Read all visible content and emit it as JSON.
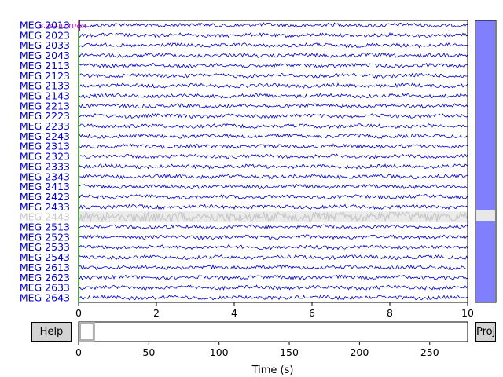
{
  "channels": [
    {
      "name": "MEG 2013",
      "bad": false
    },
    {
      "name": "MEG 2023",
      "bad": false
    },
    {
      "name": "MEG 2033",
      "bad": false
    },
    {
      "name": "MEG 2043",
      "bad": false
    },
    {
      "name": "MEG 2113",
      "bad": false
    },
    {
      "name": "MEG 2123",
      "bad": false
    },
    {
      "name": "MEG 2133",
      "bad": false
    },
    {
      "name": "MEG 2143",
      "bad": false
    },
    {
      "name": "MEG 2213",
      "bad": false
    },
    {
      "name": "MEG 2223",
      "bad": false
    },
    {
      "name": "MEG 2233",
      "bad": false
    },
    {
      "name": "MEG 2243",
      "bad": false
    },
    {
      "name": "MEG 2313",
      "bad": false
    },
    {
      "name": "MEG 2323",
      "bad": false
    },
    {
      "name": "MEG 2333",
      "bad": false
    },
    {
      "name": "MEG 2343",
      "bad": false
    },
    {
      "name": "MEG 2413",
      "bad": false
    },
    {
      "name": "MEG 2423",
      "bad": false
    },
    {
      "name": "MEG 2433",
      "bad": false
    },
    {
      "name": "MEG 2443",
      "bad": true
    },
    {
      "name": "MEG 2513",
      "bad": false
    },
    {
      "name": "MEG 2523",
      "bad": false
    },
    {
      "name": "MEG 2533",
      "bad": false
    },
    {
      "name": "MEG 2543",
      "bad": false
    },
    {
      "name": "MEG 2613",
      "bad": false
    },
    {
      "name": "MEG 2623",
      "bad": false
    },
    {
      "name": "MEG 2633",
      "bad": false
    },
    {
      "name": "MEG 2643",
      "bad": false
    }
  ],
  "main_axis": {
    "x_range": [
      0,
      10
    ],
    "x_ticks": [
      "0",
      "2",
      "4",
      "6",
      "8",
      "10"
    ],
    "scale_label": "8.0e+02 fT/cm",
    "trace_color": "#0000cc",
    "bad_color": "#c8c8c8",
    "marker_color": "#00c000",
    "scale_color": "#aa00aa"
  },
  "time_axis": {
    "range": [
      0,
      277
    ],
    "ticks": [
      "0",
      "50",
      "100",
      "150",
      "200",
      "250"
    ],
    "xlabel": "Time (s)",
    "window": [
      0,
      10
    ]
  },
  "vertical_scroll": {
    "fill_color": "#8080ff",
    "bad_marker_color": "#e8e8e8"
  },
  "buttons": {
    "help": "Help",
    "proj": "Proj"
  }
}
